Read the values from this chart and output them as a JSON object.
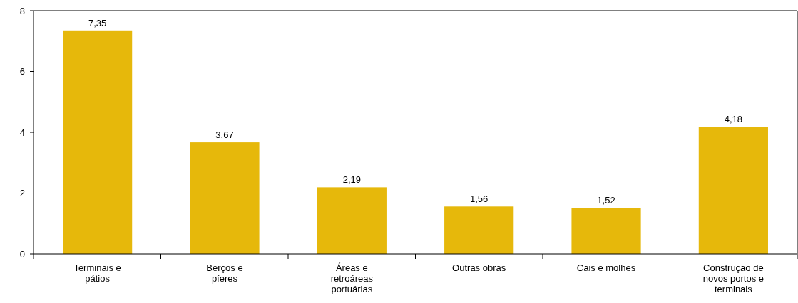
{
  "chart_data": {
    "type": "bar",
    "categories": [
      "Terminais e pátios",
      "Berços e píeres",
      "Áreas e retroáreas portuárias",
      "Outras obras",
      "Cais e molhes",
      "Construção de novos portos e terminais"
    ],
    "values": [
      7.35,
      3.67,
      2.19,
      1.56,
      1.52,
      4.18
    ],
    "value_labels": [
      "7,35",
      "3,67",
      "2,19",
      "1,56",
      "1,52",
      "4,18"
    ],
    "color": "#e6b80b",
    "ylim": [
      0,
      8
    ],
    "yticks": [
      0,
      2,
      4,
      6,
      8
    ]
  }
}
